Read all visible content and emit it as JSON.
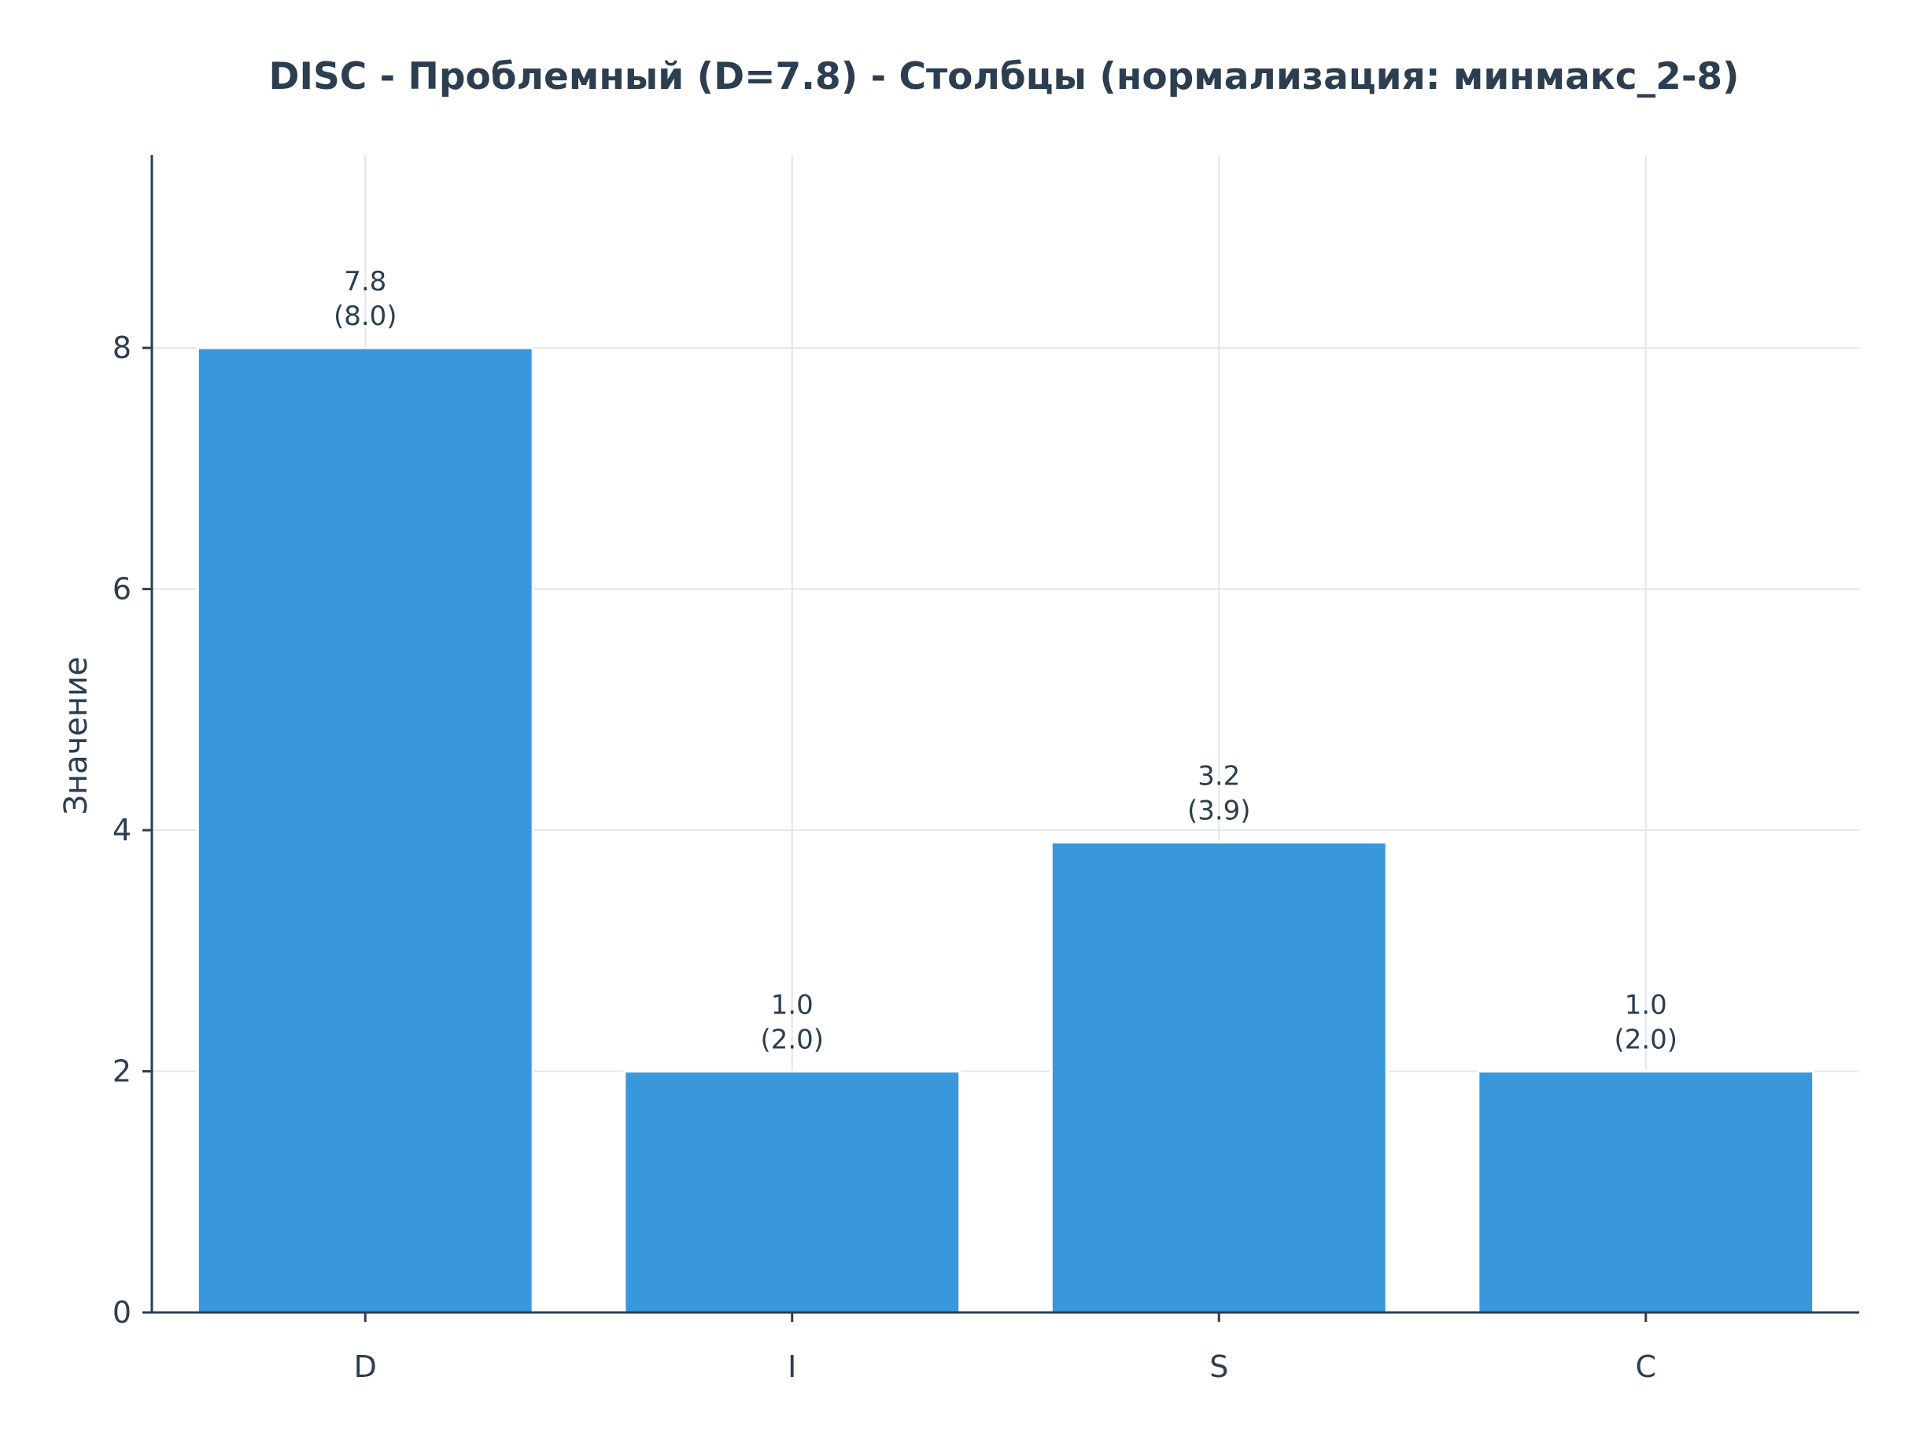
{
  "chart_data": {
    "type": "bar",
    "title": "DISC - Проблемный (D=7.8) - Столбцы (нормализация: минмакс_2-8)",
    "xlabel": "",
    "ylabel": "Значение",
    "categories": [
      "D",
      "I",
      "S",
      "C"
    ],
    "values": [
      8.0,
      2.0,
      3.9,
      2.0
    ],
    "raw_values": [
      7.8,
      1.0,
      3.2,
      1.0
    ],
    "bar_labels": [
      {
        "raw": "7.8",
        "normalized": "(8.0)"
      },
      {
        "raw": "1.0",
        "normalized": "(2.0)"
      },
      {
        "raw": "3.2",
        "normalized": "(3.9)"
      },
      {
        "raw": "1.0",
        "normalized": "(2.0)"
      }
    ],
    "ylim": [
      0,
      9.6
    ],
    "yticks": [
      0,
      2,
      4,
      6,
      8
    ],
    "grid": true,
    "bar_color": "#3898db",
    "text_color": "#2c3e50"
  }
}
